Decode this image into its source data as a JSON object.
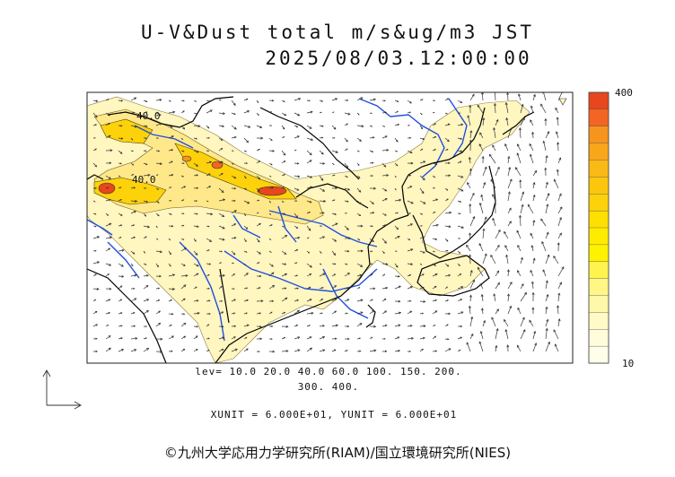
{
  "title": {
    "line1": "U-V&Dust total m/s&ug/m3 JST",
    "line2": "2025/08/03.12:00:00"
  },
  "contour_labels": [
    "40.0",
    "40.0"
  ],
  "legend": {
    "line1": "lev= 10.0 20.0 40.0 60.0 100. 150. 200.",
    "line2": "300. 400."
  },
  "units_line": "XUNIT = 6.000E+01, YUNIT = 6.000E+01",
  "colorbar": {
    "max_label": "400",
    "min_label": "10",
    "colors": [
      "#e8461c",
      "#f26522",
      "#f7941d",
      "#faa61a",
      "#fbb917",
      "#fcc60e",
      "#fdd20a",
      "#fee000",
      "#ffeb00",
      "#fff200",
      "#fff44f",
      "#fff685",
      "#fff8a8",
      "#fffac6",
      "#fffcdc",
      "#fffee9"
    ]
  },
  "colors": {
    "coast": "#000000",
    "river": "#1f4fe0",
    "dust_low": "#fff6c0",
    "dust_mid": "#ffe88a",
    "dust_high": "#f7941d",
    "dust_peak": "#e8461c"
  },
  "copyright": "©九州大学応用力学研究所(RIAM)/国立環境研究所(NIES)"
}
